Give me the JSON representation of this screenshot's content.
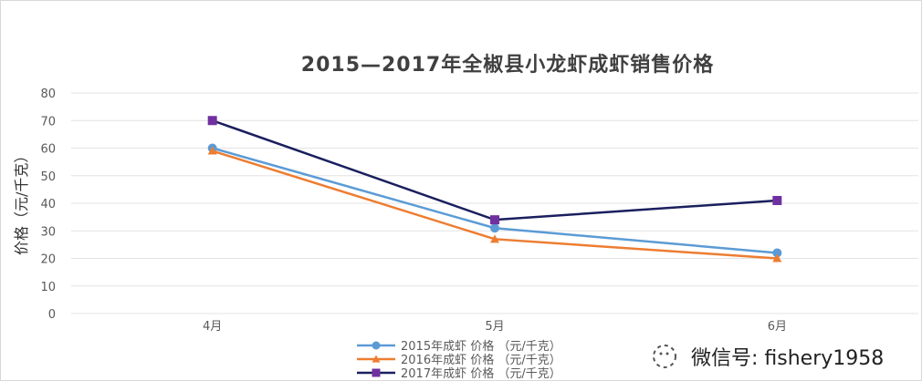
{
  "chart_data": {
    "type": "line",
    "title": "2015—2017年全椒县小龙虾成虾销售价格",
    "xlabel": "",
    "ylabel": "价格（元/千克）",
    "categories": [
      "4月",
      "5月",
      "6月"
    ],
    "ylim": [
      0,
      80
    ],
    "yticks": [
      0,
      10,
      20,
      30,
      40,
      50,
      60,
      70,
      80
    ],
    "grid": true,
    "legend_position": "bottom",
    "series": [
      {
        "name": "2015年成虾 价格 （元/千克）",
        "values": [
          60,
          31,
          22
        ],
        "color": "#5b9bd5",
        "marker": "circle"
      },
      {
        "name": "2016年成虾 价格 （元/千克）",
        "values": [
          59,
          27,
          20
        ],
        "color": "#ed7d31",
        "marker": "triangle"
      },
      {
        "name": "2017年成虾 价格 （元/千克）",
        "values": [
          70,
          34,
          41
        ],
        "color": "#1a1f5e",
        "marker": "square",
        "marker_color": "#7030a0"
      }
    ]
  },
  "watermark": {
    "text": "微信号: fishery1958",
    "icon": "wechat-icon"
  }
}
